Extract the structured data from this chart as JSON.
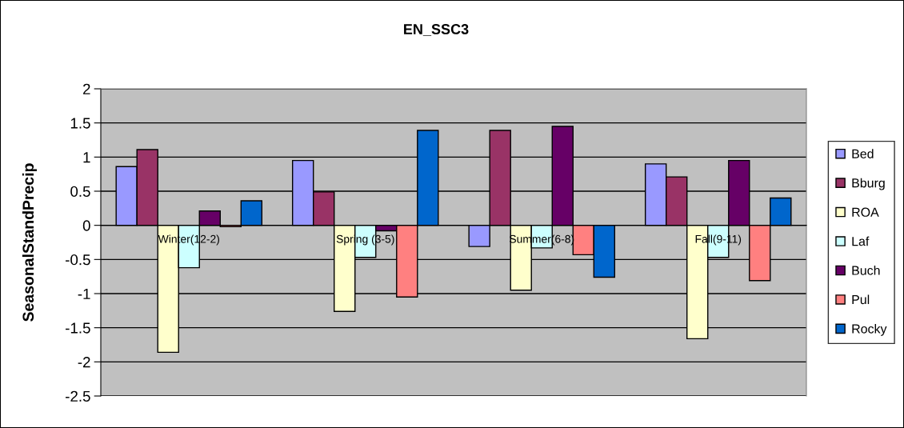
{
  "chart_data": {
    "type": "bar",
    "title": "EN_SSC3",
    "ylabel": "SeasonalStandPrecip",
    "categories": [
      "Winter(12-2)",
      "Spring (3-5)",
      "Summer(6-8)",
      "Fall(9-11)"
    ],
    "series": [
      {
        "name": "Bed",
        "color": "#9999ff",
        "values": [
          0.86,
          0.95,
          -0.31,
          0.9
        ]
      },
      {
        "name": "Bburg",
        "color": "#993366",
        "values": [
          1.11,
          0.49,
          1.39,
          0.71
        ]
      },
      {
        "name": "ROA",
        "color": "#ffffcc",
        "values": [
          -1.86,
          -1.26,
          -0.95,
          -1.66
        ]
      },
      {
        "name": "Laf",
        "color": "#ccffff",
        "values": [
          -0.62,
          -0.47,
          -0.33,
          -0.47
        ]
      },
      {
        "name": "Buch",
        "color": "#660066",
        "values": [
          0.21,
          -0.08,
          1.45,
          0.95
        ]
      },
      {
        "name": "Pul",
        "color": "#ff8080",
        "values": [
          -0.02,
          -1.05,
          -0.43,
          -0.81
        ]
      },
      {
        "name": "Rocky",
        "color": "#0066cc",
        "values": [
          0.36,
          1.39,
          -0.76,
          0.4
        ]
      }
    ],
    "ylim": [
      -2.5,
      2
    ],
    "yticks": [
      -2.5,
      -2,
      -1.5,
      -1,
      -0.5,
      0,
      0.5,
      1,
      1.5,
      2
    ],
    "grid": "y",
    "legend": "right"
  }
}
